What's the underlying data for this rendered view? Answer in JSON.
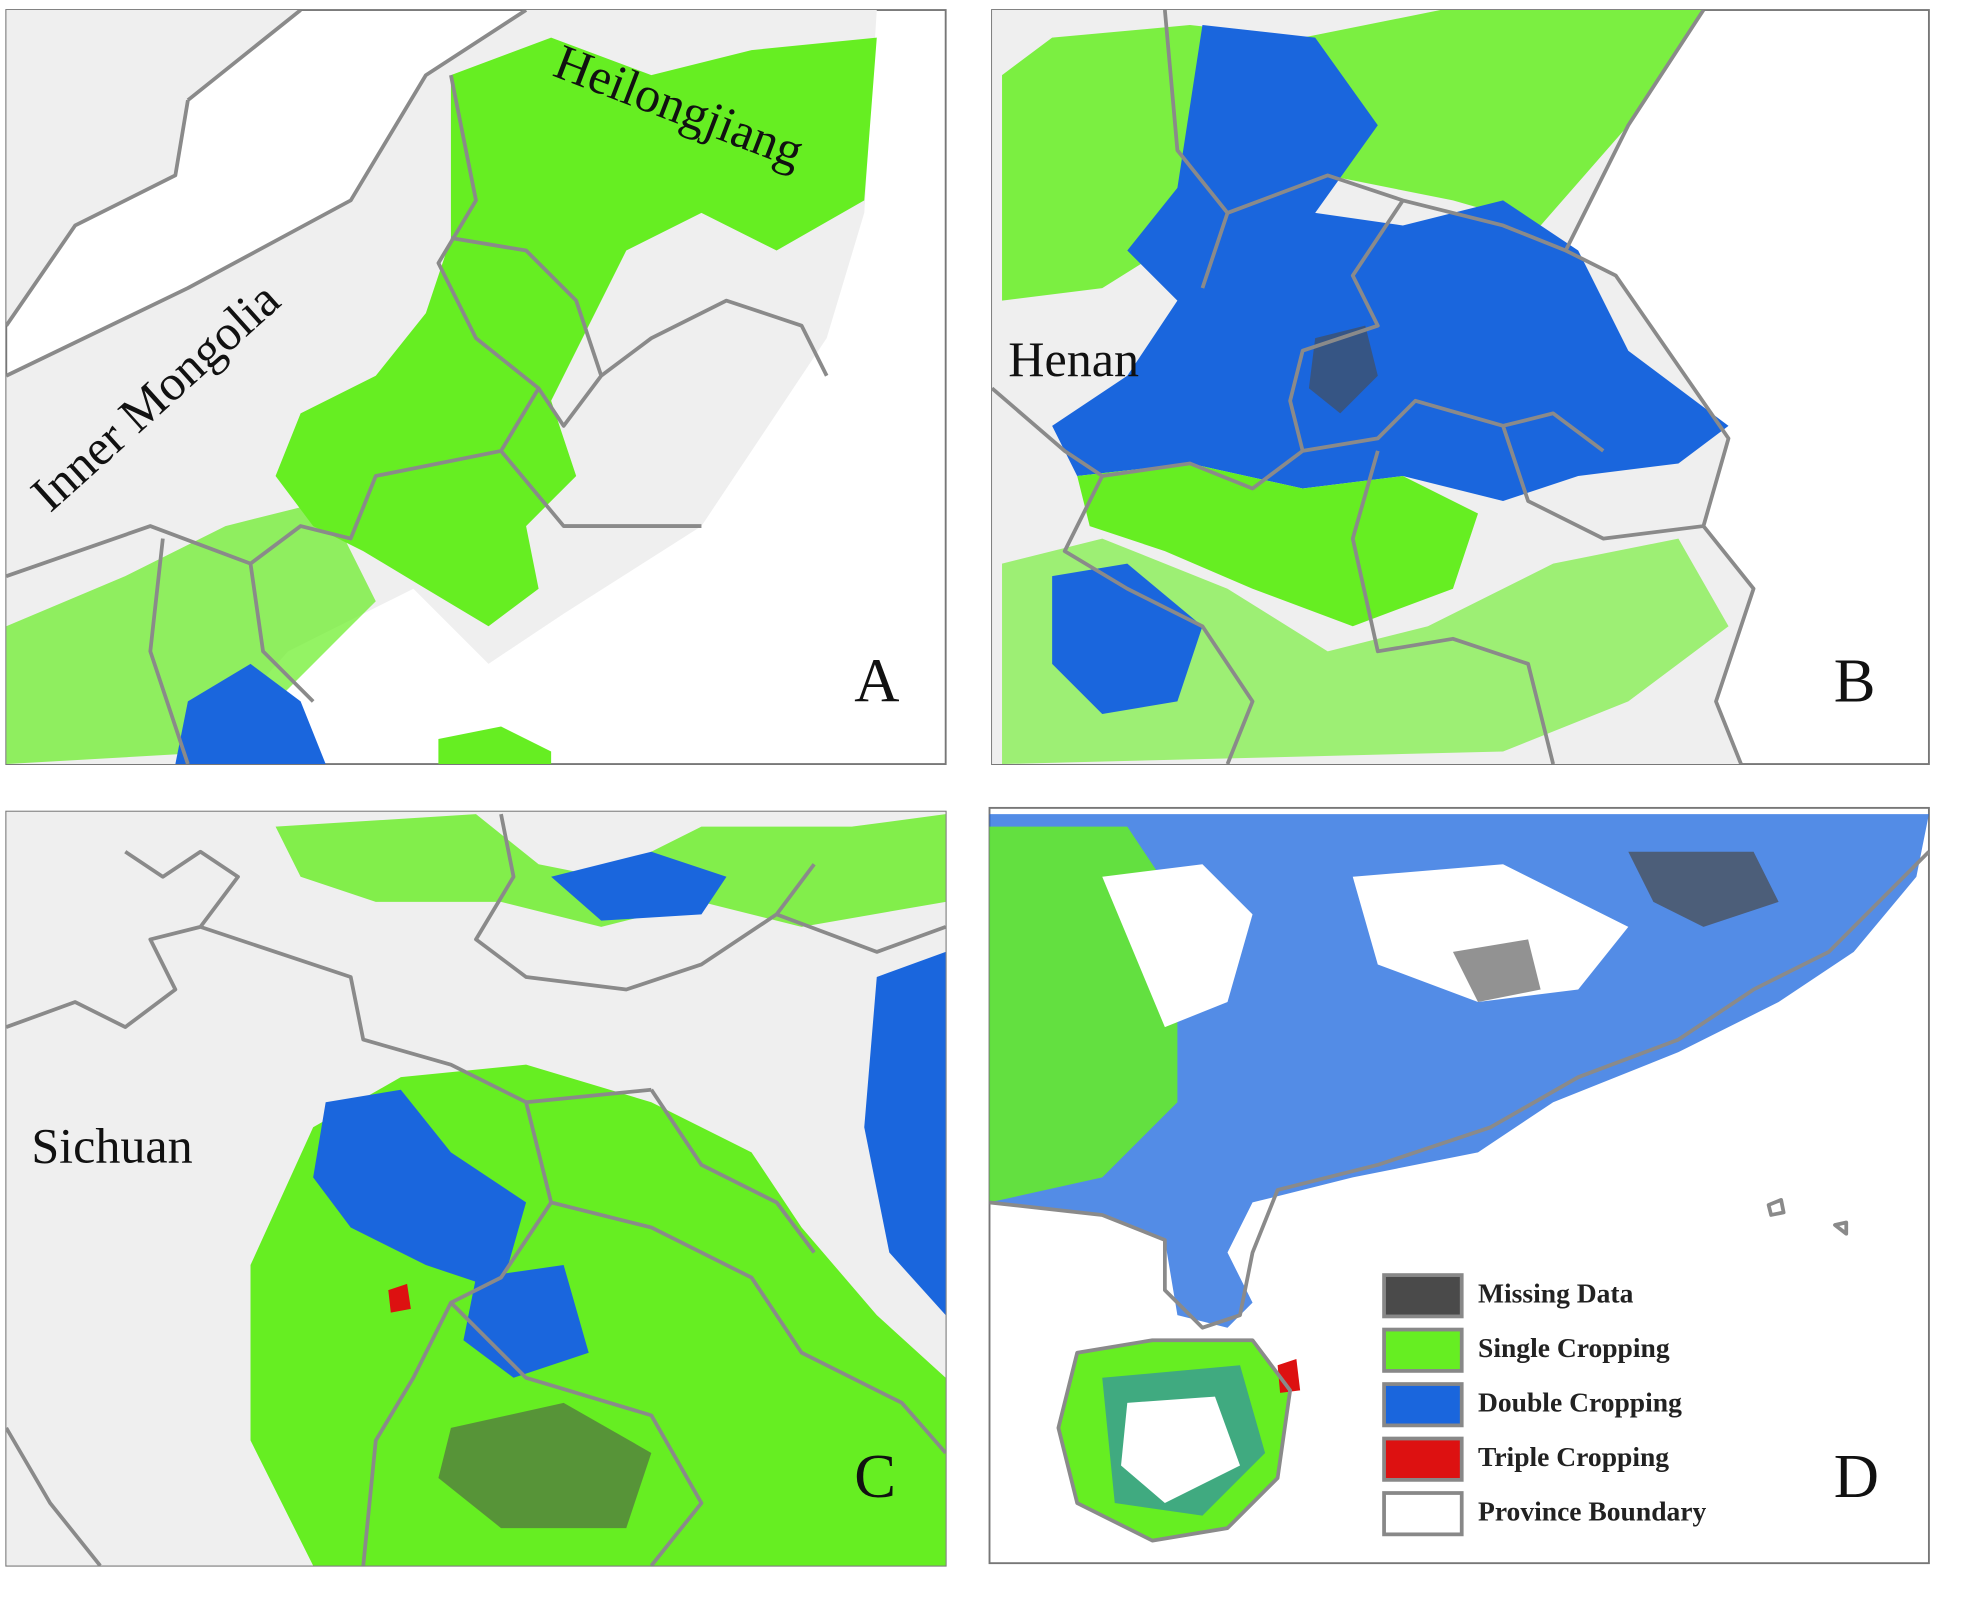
{
  "panels": [
    {
      "letter": "A",
      "regions": [
        "Inner Mongolia",
        "Heilongjiang"
      ]
    },
    {
      "letter": "B",
      "regions": [
        "Henan"
      ]
    },
    {
      "letter": "C",
      "regions": [
        "Sichuan"
      ]
    },
    {
      "letter": "D",
      "regions": []
    }
  ],
  "legend": [
    {
      "label": "Missing Data",
      "color": "#4a4a4a"
    },
    {
      "label": "Single Cropping",
      "color": "#66ee22"
    },
    {
      "label": "Double Cropping",
      "color": "#1a66dd"
    },
    {
      "label": "Triple Cropping",
      "color": "#dd1111"
    },
    {
      "label": "Province Boundary",
      "color": "#ffffff"
    }
  ]
}
